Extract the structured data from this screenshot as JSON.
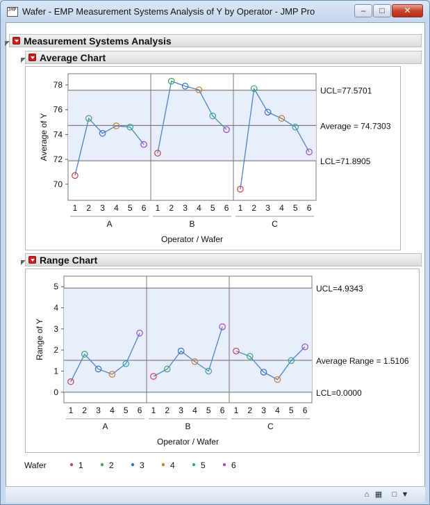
{
  "window": {
    "title": "Wafer - EMP Measurement Systems Analysis of Y by Operator - JMP Pro",
    "app_icon_label": "JMP"
  },
  "sections": {
    "msa": {
      "title": "Measurement Systems Analysis"
    },
    "average": {
      "title": "Average Chart"
    },
    "range": {
      "title": "Range Chart"
    }
  },
  "colors": {
    "line": "#4a84c8",
    "band": "#e8eefb",
    "wafer": {
      "1": "#d0404a",
      "2": "#3aa85a",
      "3": "#3a6fc9",
      "4": "#d07a2a",
      "5": "#2aa9a0",
      "6": "#9a4ac9"
    }
  },
  "chart_data": [
    {
      "type": "line",
      "title": "Average Chart",
      "ylabel": "Average of Y",
      "xlabel": "Operator / Wafer",
      "ylim": [
        68.7,
        78.9
      ],
      "yticks": [
        70,
        72,
        74,
        76,
        78
      ],
      "groups": [
        "A",
        "B",
        "C"
      ],
      "categories": [
        "1",
        "2",
        "3",
        "4",
        "5",
        "6"
      ],
      "series": [
        {
          "name": "A",
          "values": [
            70.7,
            75.3,
            74.1,
            74.7,
            74.6,
            73.2
          ]
        },
        {
          "name": "B",
          "values": [
            72.5,
            78.3,
            77.9,
            77.6,
            75.5,
            74.4
          ]
        },
        {
          "name": "C",
          "values": [
            69.6,
            77.7,
            75.8,
            75.3,
            74.6,
            72.6
          ]
        }
      ],
      "ucl": 77.5701,
      "center": 74.7303,
      "lcl": 71.8905,
      "ucl_label": "UCL=77.5701",
      "center_label": "Average = 74.7303",
      "lcl_label": "LCL=71.8905"
    },
    {
      "type": "line",
      "title": "Range Chart",
      "ylabel": "Range of Y",
      "xlabel": "Operator / Wafer",
      "ylim": [
        -0.5,
        5.5
      ],
      "yticks": [
        0,
        1,
        2,
        3,
        4,
        5
      ],
      "groups": [
        "A",
        "B",
        "C"
      ],
      "categories": [
        "1",
        "2",
        "3",
        "4",
        "5",
        "6"
      ],
      "series": [
        {
          "name": "A",
          "values": [
            0.5,
            1.8,
            1.1,
            0.85,
            1.35,
            2.8
          ]
        },
        {
          "name": "B",
          "values": [
            0.75,
            1.1,
            1.95,
            1.45,
            1.0,
            3.1
          ]
        },
        {
          "name": "C",
          "values": [
            1.95,
            1.7,
            0.95,
            0.6,
            1.5,
            2.15
          ]
        }
      ],
      "ucl": 4.9343,
      "center": 1.5106,
      "lcl": 0.0,
      "ucl_label": "UCL=4.9343",
      "center_label": "Average Range = 1.5106",
      "lcl_label": "LCL=0.0000"
    }
  ],
  "legend": {
    "title": "Wafer",
    "items": [
      "1",
      "2",
      "3",
      "4",
      "5",
      "6"
    ]
  }
}
